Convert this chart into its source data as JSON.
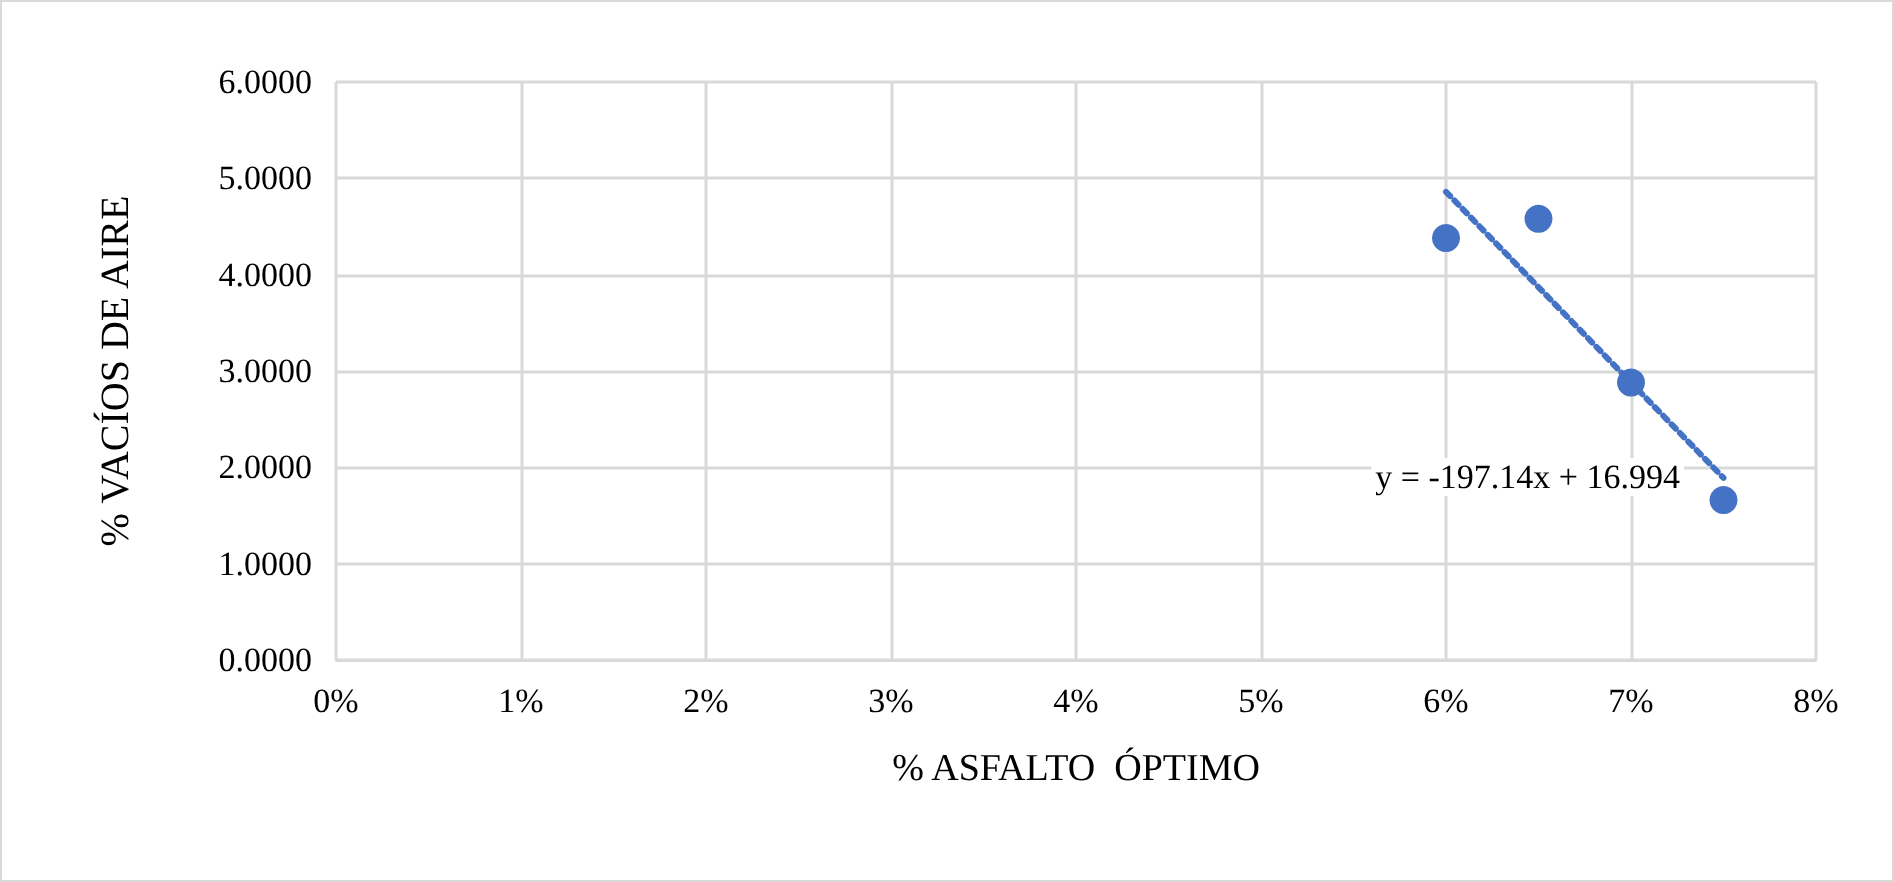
{
  "chart_data": {
    "type": "scatter",
    "xlabel": "% ASFALTO  ÓPTIMO",
    "ylabel": "% VACÍOS DE AIRE",
    "x": [
      0.06,
      0.065,
      0.07,
      0.075
    ],
    "series": [
      {
        "color": "#4472c4",
        "marker": "circle",
        "values": [
          4.38,
          4.58,
          2.88,
          1.66
        ]
      },
      {
        "type": "line",
        "color": "#4472c4",
        "line_style": "dotted",
        "marker": "none",
        "x": [
          0.06,
          0.075
        ],
        "values": [
          4.86,
          1.89
        ]
      }
    ],
    "annotations": [
      "y = -197.14x + 16.994"
    ],
    "xlim": [
      0,
      0.08
    ],
    "xticks": [
      {
        "value": 0,
        "label": "0%"
      },
      {
        "value": 0.01,
        "label": "1%"
      },
      {
        "value": 0.02,
        "label": "2%"
      },
      {
        "value": 0.03,
        "label": "3%"
      },
      {
        "value": 0.04,
        "label": "4%"
      },
      {
        "value": 0.05,
        "label": "5%"
      },
      {
        "value": 0.06,
        "label": "6%"
      },
      {
        "value": 0.07,
        "label": "7%"
      },
      {
        "value": 0.08,
        "label": "8%"
      }
    ],
    "ylim": [
      0,
      6
    ],
    "yticks": [
      {
        "value": 0,
        "label": "0.0000"
      },
      {
        "value": 1,
        "label": "1.0000"
      },
      {
        "value": 2,
        "label": "2.0000"
      },
      {
        "value": 3,
        "label": "3.0000"
      },
      {
        "value": 4,
        "label": "4.0000"
      },
      {
        "value": 5,
        "label": "5.0000"
      },
      {
        "value": 6,
        "label": "6.0000"
      }
    ],
    "grid": true
  }
}
